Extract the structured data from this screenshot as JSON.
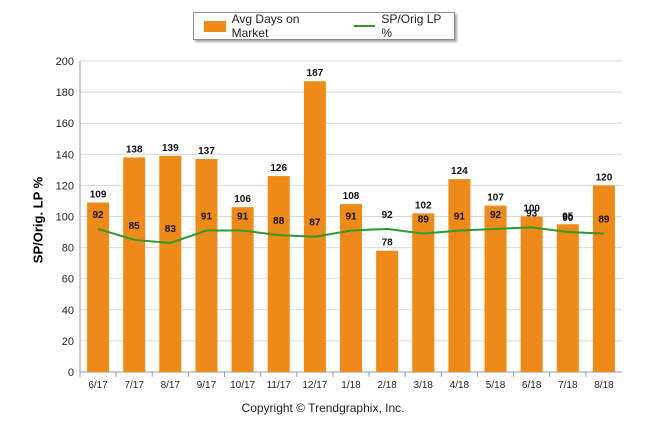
{
  "chart_data": {
    "type": "bar",
    "categories": [
      "6/17",
      "7/17",
      "8/17",
      "9/17",
      "10/17",
      "11/17",
      "12/17",
      "1/18",
      "2/18",
      "3/18",
      "4/18",
      "5/18",
      "6/18",
      "7/18",
      "8/18"
    ],
    "series": [
      {
        "name": "Avg Days on Market",
        "type": "bar",
        "color": "#ee8a17",
        "values": [
          109,
          138,
          139,
          137,
          106,
          126,
          187,
          108,
          78,
          102,
          124,
          107,
          100,
          95,
          120
        ]
      },
      {
        "name": "SP/Orig LP %",
        "type": "line",
        "color": "#2e9a2e",
        "values": [
          92,
          85,
          83,
          91,
          91,
          88,
          87,
          91,
          92,
          89,
          91,
          92,
          93,
          90,
          89
        ]
      }
    ],
    "ylabel": "SP/Orig. LP %",
    "ylim": [
      0,
      200
    ],
    "yticks": [
      0,
      20,
      40,
      60,
      80,
      100,
      120,
      140,
      160,
      180,
      200
    ],
    "grid": true,
    "legend_position": "top-center"
  },
  "footer": {
    "copyright": "Copyright © Trendgraphix, Inc."
  }
}
